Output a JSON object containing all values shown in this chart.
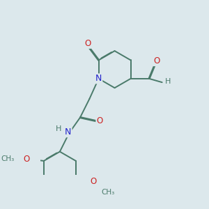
{
  "background_color": "#dce8ec",
  "bond_color": "#4a7a6a",
  "atom_colors": {
    "N": "#2222cc",
    "O": "#cc2222",
    "C": "#4a7a6a",
    "H": "#4a7a6a"
  },
  "figsize": [
    3.0,
    3.0
  ],
  "dpi": 100,
  "lw": 1.4,
  "doff": 0.022
}
